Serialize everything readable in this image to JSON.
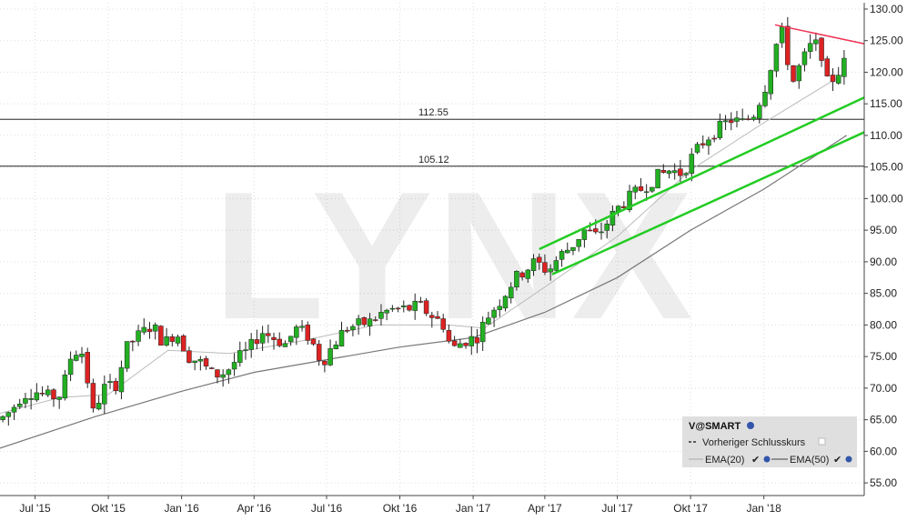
{
  "chart_data": {
    "type": "candlestick",
    "watermark": "LYNX",
    "colors": {
      "up": "#22b022",
      "down": "#dd2222",
      "ema20": "#bbbbbb",
      "ema50": "#777777",
      "trend": "#22cc22",
      "resistance": "#ee3355",
      "level": "#000000"
    },
    "y_axis": {
      "range": [
        53,
        131
      ],
      "ticks": [
        "55.00",
        "60.00",
        "65.00",
        "70.00",
        "75.00",
        "80.00",
        "85.00",
        "90.00",
        "95.00",
        "100.00",
        "105.00",
        "110.00",
        "115.00",
        "120.00",
        "125.00",
        "130.00"
      ]
    },
    "x_axis": {
      "range": [
        "2015-05-18",
        "2018-05-07"
      ],
      "ticks": [
        {
          "label": "Jul '15",
          "date": "2015-07-01"
        },
        {
          "label": "Okt '15",
          "date": "2015-10-01"
        },
        {
          "label": "Jan '16",
          "date": "2016-01-01"
        },
        {
          "label": "Apr '16",
          "date": "2016-04-01"
        },
        {
          "label": "Jul '16",
          "date": "2016-07-01"
        },
        {
          "label": "Okt '16",
          "date": "2016-10-01"
        },
        {
          "label": "Jan '17",
          "date": "2017-01-01"
        },
        {
          "label": "Apr '17",
          "date": "2017-04-01"
        },
        {
          "label": "Jul '17",
          "date": "2017-07-01"
        },
        {
          "label": "Okt '17",
          "date": "2017-10-01"
        },
        {
          "label": "Jan '18",
          "date": "2018-01-01"
        }
      ]
    },
    "horizontal_levels": [
      {
        "value": 112.55,
        "label": "112.55"
      },
      {
        "value": 105.12,
        "label": "105.12"
      }
    ],
    "weekly_close": [
      {
        "date": "2015-05-18",
        "close": 65.0
      },
      {
        "date": "2015-06-01",
        "close": 66.5
      },
      {
        "date": "2015-06-15",
        "close": 69.0
      },
      {
        "date": "2015-07-01",
        "close": 69.5
      },
      {
        "date": "2015-07-20",
        "close": 68.5
      },
      {
        "date": "2015-08-03",
        "close": 69.0
      },
      {
        "date": "2015-08-17",
        "close": 76.0
      },
      {
        "date": "2015-09-01",
        "close": 75.5
      },
      {
        "date": "2015-09-10",
        "close": 65.5
      },
      {
        "date": "2015-09-25",
        "close": 70.0
      },
      {
        "date": "2015-10-10",
        "close": 70.5
      },
      {
        "date": "2015-10-26",
        "close": 77.0
      },
      {
        "date": "2015-11-10",
        "close": 78.5
      },
      {
        "date": "2015-11-25",
        "close": 80.0
      },
      {
        "date": "2015-12-10",
        "close": 77.0
      },
      {
        "date": "2015-12-25",
        "close": 79.0
      },
      {
        "date": "2016-01-10",
        "close": 75.0
      },
      {
        "date": "2016-01-25",
        "close": 74.0
      },
      {
        "date": "2016-02-10",
        "close": 72.0
      },
      {
        "date": "2016-02-25",
        "close": 72.5
      },
      {
        "date": "2016-03-10",
        "close": 74.5
      },
      {
        "date": "2016-03-25",
        "close": 76.0
      },
      {
        "date": "2016-04-10",
        "close": 79.0
      },
      {
        "date": "2016-04-25",
        "close": 78.0
      },
      {
        "date": "2016-05-10",
        "close": 77.0
      },
      {
        "date": "2016-05-25",
        "close": 79.5
      },
      {
        "date": "2016-06-10",
        "close": 78.0
      },
      {
        "date": "2016-06-25",
        "close": 74.0
      },
      {
        "date": "2016-07-10",
        "close": 77.0
      },
      {
        "date": "2016-07-25",
        "close": 79.5
      },
      {
        "date": "2016-08-10",
        "close": 80.0
      },
      {
        "date": "2016-08-25",
        "close": 80.5
      },
      {
        "date": "2016-09-10",
        "close": 82.0
      },
      {
        "date": "2016-09-25",
        "close": 82.5
      },
      {
        "date": "2016-10-10",
        "close": 82.5
      },
      {
        "date": "2016-10-25",
        "close": 83.0
      },
      {
        "date": "2016-11-10",
        "close": 81.5
      },
      {
        "date": "2016-11-25",
        "close": 80.0
      },
      {
        "date": "2016-12-05",
        "close": 76.0
      },
      {
        "date": "2016-12-20",
        "close": 77.5
      },
      {
        "date": "2017-01-05",
        "close": 78.0
      },
      {
        "date": "2017-01-20",
        "close": 81.5
      },
      {
        "date": "2017-02-05",
        "close": 84.0
      },
      {
        "date": "2017-02-20",
        "close": 87.0
      },
      {
        "date": "2017-03-05",
        "close": 88.5
      },
      {
        "date": "2017-03-20",
        "close": 90.0
      },
      {
        "date": "2017-04-05",
        "close": 88.5
      },
      {
        "date": "2017-04-20",
        "close": 91.0
      },
      {
        "date": "2017-05-05",
        "close": 92.5
      },
      {
        "date": "2017-05-20",
        "close": 95.0
      },
      {
        "date": "2017-06-05",
        "close": 94.0
      },
      {
        "date": "2017-06-20",
        "close": 96.5
      },
      {
        "date": "2017-07-05",
        "close": 99.0
      },
      {
        "date": "2017-07-20",
        "close": 100.5
      },
      {
        "date": "2017-08-05",
        "close": 102.0
      },
      {
        "date": "2017-08-20",
        "close": 103.5
      },
      {
        "date": "2017-09-05",
        "close": 104.5
      },
      {
        "date": "2017-09-20",
        "close": 104.0
      },
      {
        "date": "2017-10-05",
        "close": 107.0
      },
      {
        "date": "2017-10-20",
        "close": 109.5
      },
      {
        "date": "2017-11-05",
        "close": 111.0
      },
      {
        "date": "2017-11-20",
        "close": 112.5
      },
      {
        "date": "2017-12-05",
        "close": 112.0
      },
      {
        "date": "2017-12-20",
        "close": 113.5
      },
      {
        "date": "2018-01-05",
        "close": 118.5
      },
      {
        "date": "2018-01-15",
        "close": 124.0
      },
      {
        "date": "2018-01-25",
        "close": 126.5
      },
      {
        "date": "2018-02-05",
        "close": 118.0
      },
      {
        "date": "2018-02-15",
        "close": 121.0
      },
      {
        "date": "2018-02-28",
        "close": 124.0
      },
      {
        "date": "2018-03-12",
        "close": 124.5
      },
      {
        "date": "2018-03-22",
        "close": 118.0
      },
      {
        "date": "2018-04-01",
        "close": 119.5
      },
      {
        "date": "2018-04-12",
        "close": 121.5
      }
    ],
    "ema20": [
      {
        "date": "2015-05-18",
        "value": 66.0
      },
      {
        "date": "2015-08-01",
        "value": 68.5
      },
      {
        "date": "2015-10-01",
        "value": 69.0
      },
      {
        "date": "2015-12-15",
        "value": 76.0
      },
      {
        "date": "2016-03-01",
        "value": 75.5
      },
      {
        "date": "2016-06-01",
        "value": 77.5
      },
      {
        "date": "2016-09-01",
        "value": 80.0
      },
      {
        "date": "2016-12-01",
        "value": 80.0
      },
      {
        "date": "2017-01-15",
        "value": 79.5
      },
      {
        "date": "2017-04-01",
        "value": 86.0
      },
      {
        "date": "2017-07-01",
        "value": 94.0
      },
      {
        "date": "2017-10-01",
        "value": 104.5
      },
      {
        "date": "2018-01-01",
        "value": 112.0
      },
      {
        "date": "2018-04-15",
        "value": 120.0
      }
    ],
    "ema50": [
      {
        "date": "2015-05-18",
        "value": 60.5
      },
      {
        "date": "2015-09-15",
        "value": 65.5
      },
      {
        "date": "2016-01-01",
        "value": 69.5
      },
      {
        "date": "2016-04-01",
        "value": 72.5
      },
      {
        "date": "2016-07-01",
        "value": 74.5
      },
      {
        "date": "2016-10-01",
        "value": 76.5
      },
      {
        "date": "2017-01-01",
        "value": 78.0
      },
      {
        "date": "2017-04-01",
        "value": 82.0
      },
      {
        "date": "2017-07-01",
        "value": 87.5
      },
      {
        "date": "2017-10-01",
        "value": 95.0
      },
      {
        "date": "2018-01-01",
        "value": 101.5
      },
      {
        "date": "2018-04-15",
        "value": 110.0
      }
    ],
    "trend_lines": [
      {
        "from": {
          "date": "2017-03-25",
          "value": 92.0
        },
        "to": {
          "date": "2018-05-07",
          "value": 116.0
        }
      },
      {
        "from": {
          "date": "2017-04-10",
          "value": 88.0
        },
        "to": {
          "date": "2018-05-07",
          "value": 110.5
        }
      }
    ],
    "resistance_line": {
      "from": {
        "date": "2018-01-15",
        "value": 127.5
      },
      "to": {
        "date": "2018-05-07",
        "value": 124.5
      }
    },
    "legend": {
      "title": "V@SMART",
      "items": [
        {
          "label": "Vorheriger Schlusskurs"
        },
        {
          "label": "EMA(20)"
        },
        {
          "label": "EMA(50)"
        }
      ]
    }
  }
}
